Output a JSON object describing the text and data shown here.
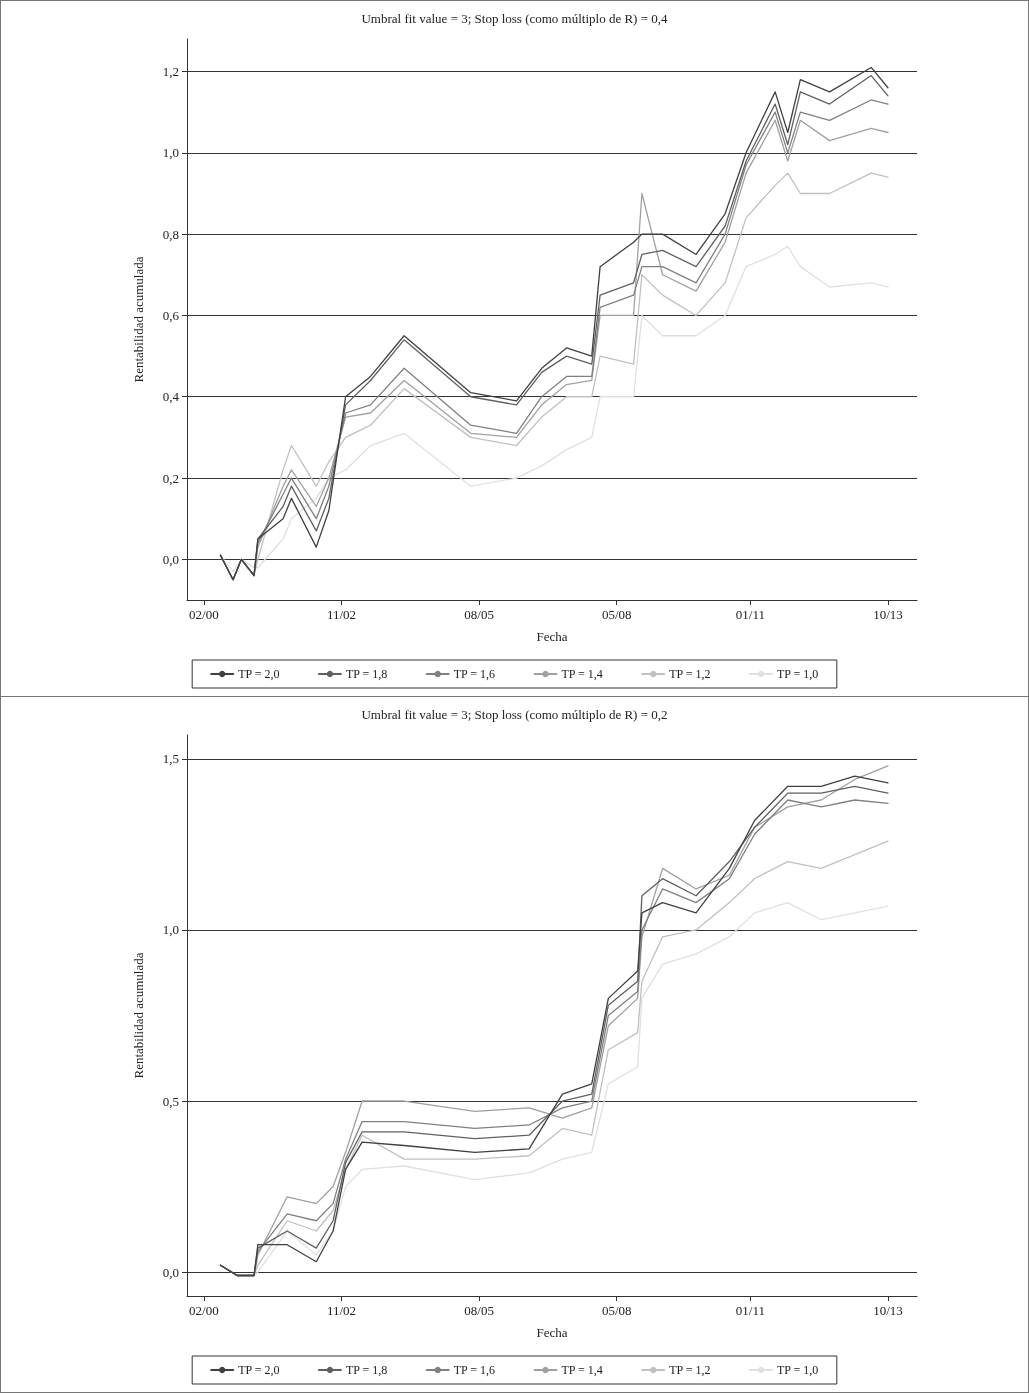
{
  "chart_data": [
    {
      "type": "line",
      "title": "Umbral fit value = 3; Stop loss (como múltiplo de R) = 0,4",
      "xlabel": "Fecha",
      "ylabel": "Rentabilidad acumulada",
      "legend": "bottom",
      "grid": "y",
      "line_style": "solid",
      "marker": "none",
      "x": [
        "2000-06",
        "2000-09",
        "2000-11",
        "2001-02",
        "2001-03",
        "2001-09",
        "2001-11",
        "2002-05",
        "2002-08",
        "2002-12",
        "2003-06",
        "2004-02",
        "2005-06",
        "2006-05",
        "2006-11",
        "2007-05",
        "2007-11",
        "2008-01",
        "2008-09",
        "2008-11",
        "2009-04",
        "2009-12",
        "2010-07",
        "2010-12",
        "2011-07",
        "2011-10",
        "2012-01",
        "2012-08",
        "2013-06",
        "2013-10"
      ],
      "xlim": [
        "1999-10",
        "2014-05"
      ],
      "xticks": [
        {
          "value": "2000-02",
          "label": "02/00"
        },
        {
          "value": "2002-11",
          "label": "11/02"
        },
        {
          "value": "2005-08",
          "label": "08/05"
        },
        {
          "value": "2008-05",
          "label": "05/08"
        },
        {
          "value": "2011-01",
          "label": "01/11"
        },
        {
          "value": "2013-10",
          "label": "10/13"
        }
      ],
      "ylim": [
        -0.1,
        1.28
      ],
      "yticks": [
        {
          "value": 0,
          "label": "0,0"
        },
        {
          "value": 0.2,
          "label": "0,2"
        },
        {
          "value": 0.4,
          "label": "0,4"
        },
        {
          "value": 0.6,
          "label": "0,6"
        },
        {
          "value": 0.8,
          "label": "0,8"
        },
        {
          "value": 1.0,
          "label": "1,0"
        },
        {
          "value": 1.2,
          "label": "1,2"
        }
      ],
      "series": [
        {
          "name": "TP = 2,0",
          "color": "#404040",
          "values": [
            0.01,
            -0.05,
            0,
            -0.04,
            0.05,
            0.1,
            0.15,
            0.03,
            0.12,
            0.4,
            0.45,
            0.55,
            0.41,
            0.39,
            0.47,
            0.52,
            0.5,
            0.72,
            0.78,
            0.8,
            0.8,
            0.75,
            0.85,
            1.0,
            1.15,
            1.05,
            1.18,
            1.15,
            1.21,
            1.16
          ]
        },
        {
          "name": "TP = 1,8",
          "color": "#606060",
          "values": [
            0.01,
            -0.05,
            0,
            -0.04,
            0.05,
            0.13,
            0.18,
            0.07,
            0.15,
            0.38,
            0.44,
            0.54,
            0.4,
            0.38,
            0.46,
            0.5,
            0.48,
            0.65,
            0.68,
            0.75,
            0.76,
            0.72,
            0.82,
            0.98,
            1.12,
            1.02,
            1.15,
            1.12,
            1.19,
            1.14
          ]
        },
        {
          "name": "TP = 1,6",
          "color": "#808080",
          "values": [
            0.01,
            -0.05,
            0,
            -0.04,
            0.04,
            0.16,
            0.2,
            0.1,
            0.18,
            0.36,
            0.38,
            0.47,
            0.33,
            0.31,
            0.4,
            0.45,
            0.45,
            0.62,
            0.65,
            0.72,
            0.72,
            0.68,
            0.8,
            0.97,
            1.1,
            1.0,
            1.1,
            1.08,
            1.13,
            1.12
          ]
        },
        {
          "name": "TP = 1,4",
          "color": "#a0a0a0",
          "values": [
            0.01,
            -0.05,
            0,
            -0.04,
            0.03,
            0.18,
            0.22,
            0.13,
            0.2,
            0.35,
            0.36,
            0.44,
            0.31,
            0.3,
            0.38,
            0.43,
            0.44,
            0.6,
            0.6,
            0.9,
            0.7,
            0.66,
            0.78,
            0.95,
            1.08,
            0.98,
            1.08,
            1.03,
            1.06,
            1.05
          ]
        },
        {
          "name": "TP = 1,2",
          "color": "#c0c0c0",
          "values": [
            0.01,
            -0.05,
            0,
            -0.04,
            0,
            0.22,
            0.28,
            0.18,
            0.24,
            0.3,
            0.33,
            0.42,
            0.3,
            0.28,
            0.35,
            0.4,
            0.4,
            0.5,
            0.48,
            0.7,
            0.65,
            0.6,
            0.68,
            0.84,
            0.92,
            0.95,
            0.9,
            0.9,
            0.95,
            0.94
          ]
        },
        {
          "name": "TP = 1,0",
          "color": "#e0e0e0",
          "values": [
            0.01,
            -0.03,
            0,
            -0.02,
            -0.02,
            0.05,
            0.1,
            0.15,
            0.2,
            0.22,
            0.28,
            0.31,
            0.18,
            0.2,
            0.23,
            0.27,
            0.3,
            0.4,
            0.4,
            0.6,
            0.55,
            0.55,
            0.6,
            0.72,
            0.75,
            0.77,
            0.72,
            0.67,
            0.68,
            0.67
          ]
        }
      ]
    },
    {
      "type": "line",
      "title": "Umbral fit value = 3; Stop loss (como múltiplo de R) = 0,2",
      "xlabel": "Fecha",
      "ylabel": "Rentabilidad acumulada",
      "legend": "bottom",
      "grid": "y",
      "line_style": "solid",
      "marker": "none",
      "x": [
        "2000-06",
        "2000-10",
        "2001-02",
        "2001-03",
        "2001-10",
        "2002-05",
        "2002-09",
        "2002-12",
        "2003-04",
        "2004-02",
        "2005-07",
        "2006-08",
        "2007-04",
        "2007-11",
        "2008-03",
        "2008-10",
        "2008-11",
        "2009-04",
        "2009-12",
        "2010-08",
        "2011-02",
        "2011-10",
        "2012-06",
        "2013-02",
        "2013-10"
      ],
      "xlim": [
        "1999-10",
        "2014-05"
      ],
      "xticks": [
        {
          "value": "2000-02",
          "label": "02/00"
        },
        {
          "value": "2002-11",
          "label": "11/02"
        },
        {
          "value": "2005-08",
          "label": "08/05"
        },
        {
          "value": "2008-05",
          "label": "05/08"
        },
        {
          "value": "2011-01",
          "label": "01/11"
        },
        {
          "value": "2013-10",
          "label": "10/13"
        }
      ],
      "ylim": [
        -0.07,
        1.57
      ],
      "yticks": [
        {
          "value": 0,
          "label": "0,0"
        },
        {
          "value": 0.5,
          "label": "0,5"
        },
        {
          "value": 1.0,
          "label": "1,0"
        },
        {
          "value": 1.5,
          "label": "1,5"
        }
      ],
      "series": [
        {
          "name": "TP = 2,0",
          "color": "#404040",
          "values": [
            0.02,
            -0.01,
            -0.01,
            0.08,
            0.08,
            0.03,
            0.12,
            0.3,
            0.38,
            0.37,
            0.35,
            0.36,
            0.52,
            0.55,
            0.8,
            0.88,
            1.05,
            1.08,
            1.05,
            1.18,
            1.32,
            1.42,
            1.42,
            1.45,
            1.43
          ]
        },
        {
          "name": "TP = 1,8",
          "color": "#606060",
          "values": [
            0.02,
            -0.01,
            -0.01,
            0.07,
            0.12,
            0.07,
            0.15,
            0.32,
            0.41,
            0.41,
            0.39,
            0.4,
            0.5,
            0.52,
            0.78,
            0.85,
            1.1,
            1.15,
            1.1,
            1.2,
            1.3,
            1.4,
            1.4,
            1.42,
            1.4
          ]
        },
        {
          "name": "TP = 1,6",
          "color": "#808080",
          "values": [
            0.02,
            -0.01,
            -0.01,
            0.06,
            0.17,
            0.15,
            0.2,
            0.33,
            0.44,
            0.44,
            0.42,
            0.43,
            0.48,
            0.5,
            0.75,
            0.82,
            1.0,
            1.12,
            1.08,
            1.15,
            1.28,
            1.38,
            1.36,
            1.38,
            1.37
          ]
        },
        {
          "name": "TP = 1,4",
          "color": "#a0a0a0",
          "values": [
            0.02,
            -0.01,
            -0.01,
            0.05,
            0.22,
            0.2,
            0.25,
            0.35,
            0.5,
            0.5,
            0.47,
            0.48,
            0.45,
            0.48,
            0.72,
            0.8,
            0.98,
            1.18,
            1.12,
            1.16,
            1.3,
            1.36,
            1.38,
            1.44,
            1.48
          ]
        },
        {
          "name": "TP = 1,2",
          "color": "#c0c0c0",
          "values": [
            0.02,
            -0.01,
            -0.01,
            0.02,
            0.15,
            0.12,
            0.18,
            0.3,
            0.4,
            0.33,
            0.33,
            0.34,
            0.42,
            0.4,
            0.65,
            0.7,
            0.85,
            0.98,
            1.0,
            1.08,
            1.15,
            1.2,
            1.18,
            1.22,
            1.26
          ]
        },
        {
          "name": "TP = 1,0",
          "color": "#e0e0e0",
          "values": [
            0.02,
            -0.01,
            -0.01,
            0,
            0.12,
            0.05,
            0.12,
            0.25,
            0.3,
            0.31,
            0.27,
            0.29,
            0.33,
            0.35,
            0.55,
            0.6,
            0.8,
            0.9,
            0.93,
            0.98,
            1.05,
            1.08,
            1.03,
            1.05,
            1.07
          ]
        }
      ]
    }
  ]
}
